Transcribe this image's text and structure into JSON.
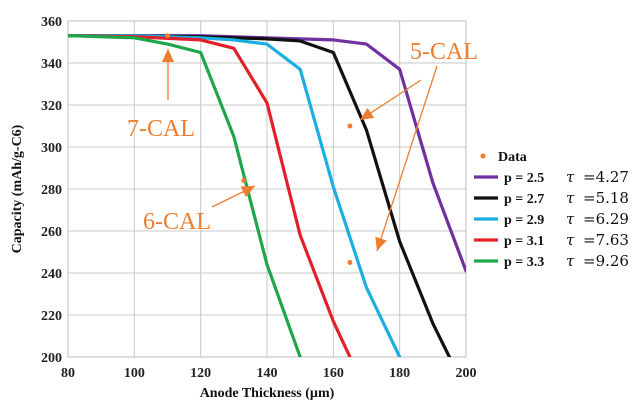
{
  "chart_data": {
    "type": "line",
    "xlabel": "Anode Thickness (µm)",
    "ylabel": "Capacity (mAh/g-C6)",
    "xlim": [
      80,
      200
    ],
    "ylim": [
      200,
      360
    ],
    "xticks": [
      "80",
      "100",
      "120",
      "140",
      "160",
      "180",
      "200"
    ],
    "yticks": [
      "200",
      "220",
      "240",
      "260",
      "280",
      "300",
      "320",
      "340",
      "360"
    ],
    "grid": true,
    "legend_position": "right",
    "series": [
      {
        "name": "p = 2.5",
        "tau_label": "τ",
        "tau_value": "=4.27",
        "color": "#7030a0",
        "x": [
          80,
          100,
          120,
          140,
          150,
          160,
          170,
          180,
          190,
          200
        ],
        "y": [
          353,
          353,
          353,
          352,
          351.5,
          351,
          349,
          337,
          283,
          241
        ]
      },
      {
        "name": "p = 2.7",
        "tau_label": "τ",
        "tau_value": "=5.18",
        "color": "#111111",
        "x": [
          80,
          100,
          120,
          140,
          150,
          160,
          170,
          180,
          190,
          195
        ],
        "y": [
          353,
          353,
          352.5,
          351.5,
          350.5,
          345,
          308,
          255,
          216,
          200
        ]
      },
      {
        "name": "p = 2.9",
        "tau_label": "τ",
        "tau_value": "=6.29",
        "color": "#1aafe0",
        "x": [
          80,
          100,
          120,
          130,
          140,
          150,
          160,
          170,
          180
        ],
        "y": [
          353,
          353,
          352,
          351,
          349,
          337,
          281,
          233,
          200
        ]
      },
      {
        "name": "p = 3.1",
        "tau_label": "τ",
        "tau_value": "=7.63",
        "color": "#e3202a",
        "x": [
          80,
          100,
          120,
          130,
          140,
          150,
          160,
          165
        ],
        "y": [
          353,
          352.5,
          351,
          347,
          321,
          258,
          217,
          200
        ]
      },
      {
        "name": "p = 3.3",
        "tau_label": "τ",
        "tau_value": "=9.26",
        "color": "#1fa64a",
        "x": [
          80,
          100,
          110,
          120,
          130,
          140,
          150
        ],
        "y": [
          353,
          352,
          349,
          345,
          305,
          244,
          200
        ]
      }
    ],
    "data_points": {
      "name": "Data",
      "color": "#ed7d31",
      "points": [
        {
          "x": 110,
          "y": 353
        },
        {
          "x": 133,
          "y": 284
        },
        {
          "x": 165,
          "y": 310
        },
        {
          "x": 165,
          "y": 245
        }
      ]
    },
    "annotations": [
      {
        "text": "7-CAL"
      },
      {
        "text": "6-CAL"
      },
      {
        "text": "5-CAL"
      }
    ]
  }
}
